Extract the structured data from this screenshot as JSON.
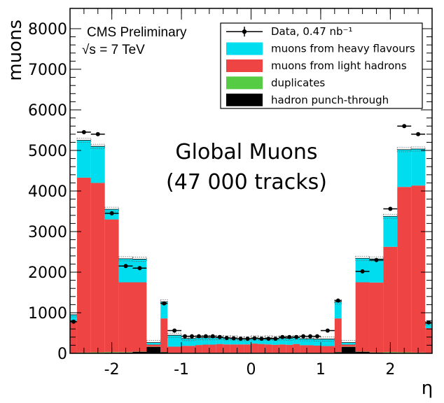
{
  "chart_data": {
    "type": "bar",
    "stacked": true,
    "xlabel": "η",
    "ylabel": "muons",
    "xlim": [
      -2.6,
      2.6
    ],
    "ylim": [
      0,
      8500
    ],
    "x_ticks": [
      -2,
      -1,
      0,
      1,
      2
    ],
    "x_tick_labels": [
      "-2",
      "-1",
      "0",
      "1",
      "2"
    ],
    "y_ticks": [
      0,
      1000,
      2000,
      3000,
      4000,
      5000,
      6000,
      7000,
      8000
    ],
    "y_tick_labels": [
      "0",
      "1000",
      "2000",
      "3000",
      "4000",
      "5000",
      "6000",
      "7000",
      "8000"
    ],
    "grid": false,
    "legend_position": "top-right",
    "header_text": [
      "CMS Preliminary",
      "√s = 7 TeV"
    ],
    "annotation": [
      "Global Muons",
      "(47 000 tracks)"
    ],
    "bin_edges": [
      -2.6,
      -2.5,
      -2.3,
      -2.1,
      -1.9,
      -1.7,
      -1.5,
      -1.3,
      -1.2,
      -1.0,
      -0.9,
      -0.8,
      -0.7,
      -0.6,
      -0.5,
      -0.4,
      -0.3,
      -0.2,
      -0.1,
      0.0,
      0.1,
      0.2,
      0.3,
      0.4,
      0.5,
      0.6,
      0.7,
      0.8,
      0.9,
      1.0,
      1.2,
      1.3,
      1.5,
      1.7,
      1.9,
      2.1,
      2.3,
      2.5,
      2.6
    ],
    "series": [
      {
        "name": "hadron punch-through",
        "color": "#000000",
        "values": [
          5,
          10,
          10,
          15,
          20,
          40,
          160,
          30,
          10,
          10,
          10,
          10,
          10,
          10,
          10,
          10,
          10,
          10,
          10,
          10,
          10,
          10,
          10,
          10,
          10,
          10,
          10,
          10,
          10,
          10,
          30,
          160,
          40,
          20,
          15,
          10,
          10,
          5
        ]
      },
      {
        "name": "duplicates",
        "color": "#55cc44",
        "values": [
          5,
          10,
          15,
          15,
          10,
          5,
          5,
          5,
          5,
          5,
          5,
          5,
          5,
          5,
          5,
          5,
          5,
          5,
          5,
          5,
          5,
          5,
          5,
          5,
          5,
          5,
          5,
          5,
          5,
          5,
          5,
          5,
          5,
          5,
          15,
          15,
          10,
          5
        ]
      },
      {
        "name": "muons from light hadrons",
        "color": "#ee4444",
        "values": [
          790,
          4310,
          4175,
          3270,
          1720,
          1705,
          50,
          825,
          150,
          170,
          170,
          190,
          200,
          200,
          215,
          205,
          205,
          205,
          205,
          225,
          215,
          205,
          195,
          205,
          195,
          215,
          185,
          185,
          175,
          165,
          825,
          50,
          1705,
          1720,
          2595,
          4075,
          4115,
          610
        ]
      },
      {
        "name": "muons from heavy flavours",
        "color": "#00ddee",
        "values": [
          150,
          920,
          900,
          250,
          580,
          570,
          50,
          410,
          280,
          180,
          180,
          180,
          170,
          170,
          160,
          160,
          160,
          140,
          140,
          140,
          140,
          160,
          160,
          160,
          160,
          160,
          160,
          160,
          160,
          170,
          410,
          50,
          590,
          580,
          750,
          920,
          900,
          110
        ]
      }
    ],
    "data_series": {
      "name": "Data, 0.47 nb⁻¹",
      "color": "#000000",
      "values": [
        780,
        5450,
        5400,
        3450,
        2150,
        2100,
        0,
        1230,
        560,
        420,
        420,
        420,
        420,
        420,
        400,
        380,
        370,
        360,
        360,
        370,
        360,
        360,
        360,
        400,
        400,
        400,
        420,
        420,
        420,
        560,
        1300,
        0,
        2020,
        2300,
        3560,
        5600,
        5400,
        760
      ]
    }
  }
}
